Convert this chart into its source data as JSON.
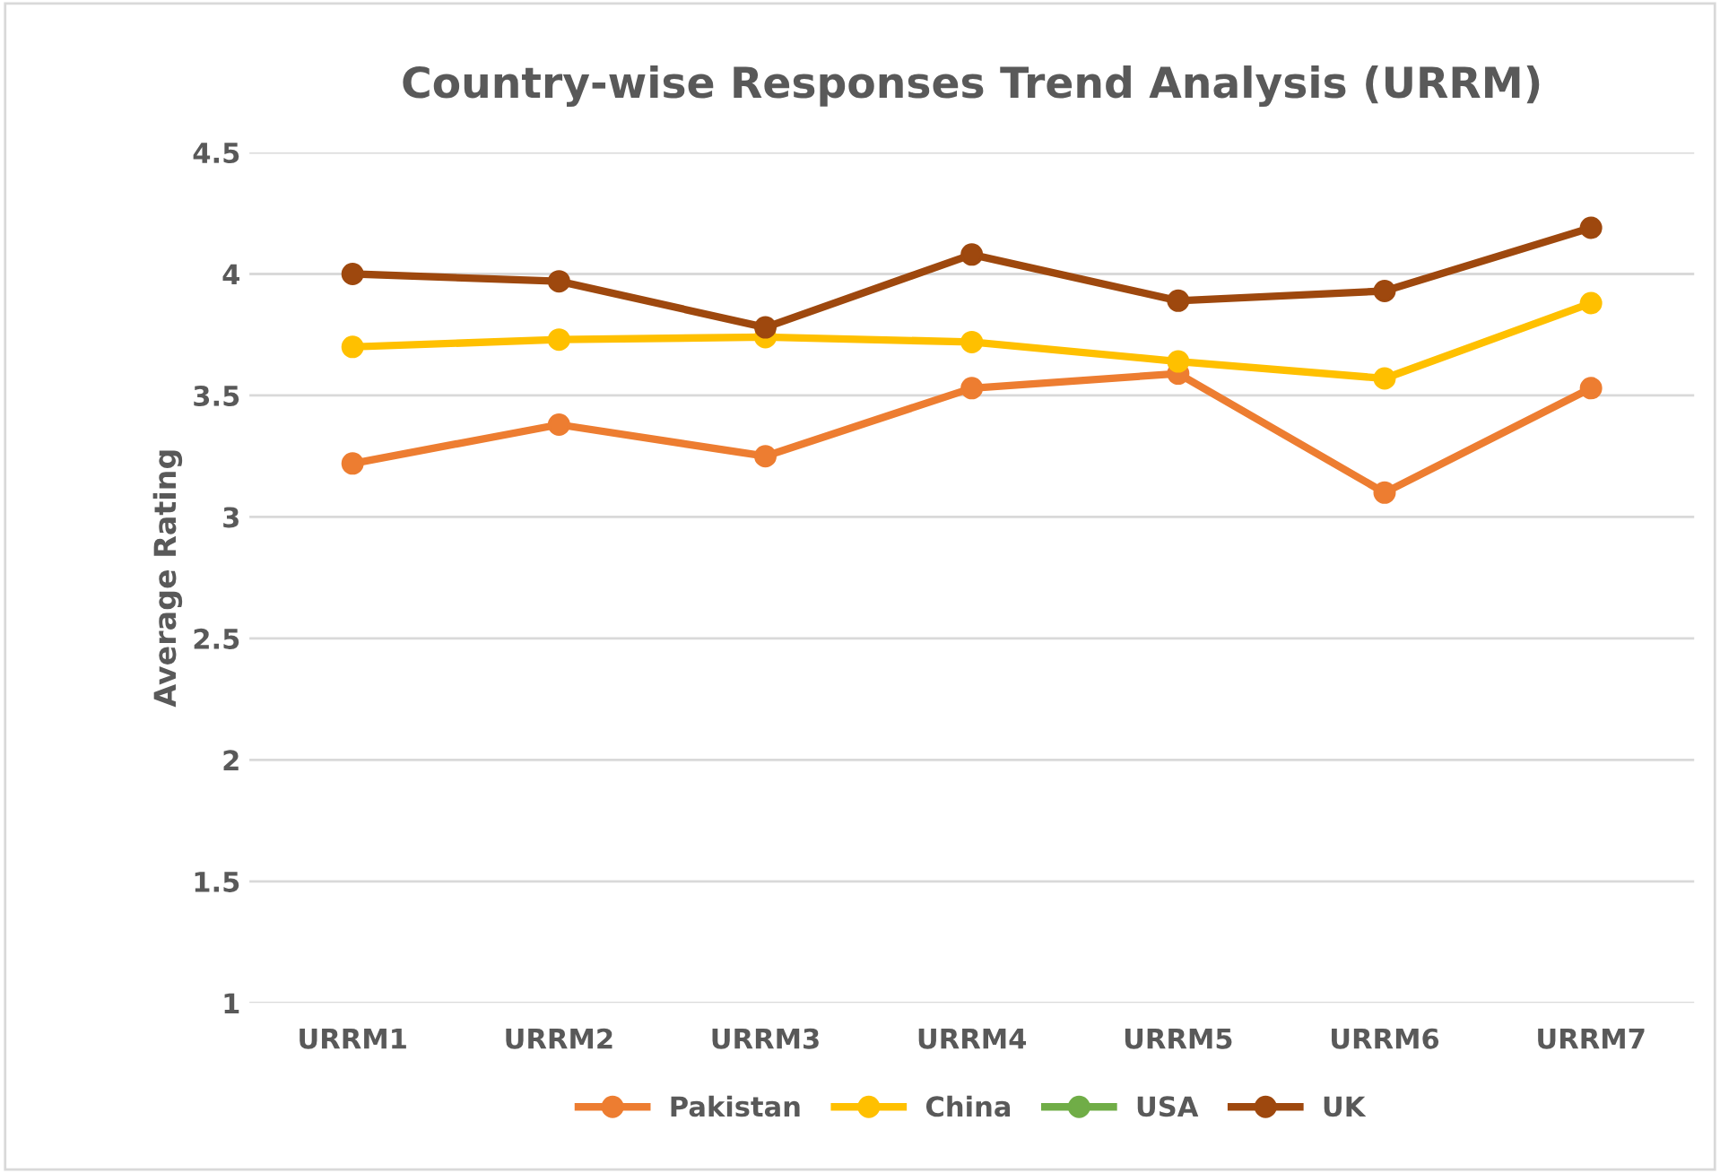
{
  "chart_data": {
    "type": "line",
    "title": "Country-wise Responses Trend Analysis (URRM)",
    "ylabel": "Average Rating",
    "categories": [
      "URRM1",
      "URRM2",
      "URRM3",
      "URRM4",
      "URRM5",
      "URRM6",
      "URRM7"
    ],
    "series": [
      {
        "name": "Pakistan",
        "color": "#ed7d31",
        "values": [
          3.22,
          3.38,
          3.25,
          3.53,
          3.59,
          3.1,
          3.53
        ]
      },
      {
        "name": "China",
        "color": "#ffc000",
        "values": [
          3.7,
          3.73,
          3.74,
          3.72,
          3.64,
          3.57,
          3.88
        ]
      },
      {
        "name": "USA",
        "color": "#70ad47",
        "values": [
          null,
          null,
          null,
          null,
          null,
          null,
          null
        ]
      },
      {
        "name": "UK",
        "color": "#9e480e",
        "values": [
          4.0,
          3.97,
          3.78,
          4.08,
          3.89,
          3.93,
          4.19
        ]
      }
    ],
    "ylim": [
      1,
      4.5
    ],
    "yticks": [
      1,
      1.5,
      2,
      2.5,
      3,
      3.5,
      4,
      4.5
    ],
    "grid": "y",
    "legend": "bottom",
    "marker": "circle",
    "line_style": "solid"
  }
}
